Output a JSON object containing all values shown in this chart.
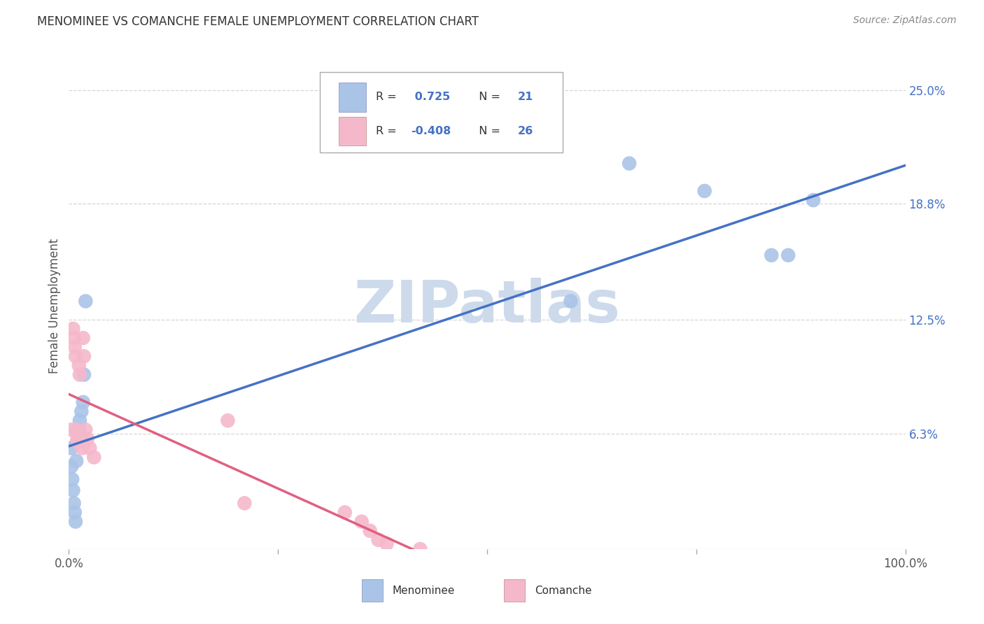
{
  "title": "MENOMINEE VS COMANCHE FEMALE UNEMPLOYMENT CORRELATION CHART",
  "source": "Source: ZipAtlas.com",
  "ylabel": "Female Unemployment",
  "menominee_R": 0.725,
  "menominee_N": 21,
  "comanche_R": -0.408,
  "comanche_N": 26,
  "menominee_color": "#aac4e8",
  "comanche_color": "#f5b8cb",
  "menominee_line_color": "#4472c4",
  "comanche_line_color": "#e06080",
  "background_color": "#ffffff",
  "grid_color": "#cccccc",
  "watermark_color": "#cddaeb",
  "legend_menominee": "Menominee",
  "legend_comanche": "Comanche",
  "xlim": [
    0.0,
    1.0
  ],
  "ylim": [
    0.0,
    0.265
  ],
  "y_tick_vals": [
    0.063,
    0.125,
    0.188,
    0.25
  ],
  "y_tick_labels": [
    "6.3%",
    "12.5%",
    "18.8%",
    "25.0%"
  ],
  "x_tick_vals": [
    0.0,
    0.25,
    0.5,
    0.75,
    1.0
  ],
  "menominee_x": [
    0.003,
    0.003,
    0.004,
    0.005,
    0.006,
    0.007,
    0.008,
    0.009,
    0.01,
    0.012,
    0.013,
    0.015,
    0.017,
    0.018,
    0.02,
    0.6,
    0.67,
    0.76,
    0.84,
    0.86,
    0.89
  ],
  "menominee_y": [
    0.055,
    0.045,
    0.038,
    0.032,
    0.025,
    0.02,
    0.015,
    0.048,
    0.058,
    0.065,
    0.07,
    0.075,
    0.08,
    0.095,
    0.135,
    0.135,
    0.21,
    0.195,
    0.16,
    0.16,
    0.19
  ],
  "comanche_x": [
    0.003,
    0.005,
    0.006,
    0.007,
    0.008,
    0.009,
    0.01,
    0.011,
    0.012,
    0.013,
    0.015,
    0.016,
    0.017,
    0.018,
    0.02,
    0.022,
    0.025,
    0.03,
    0.19,
    0.21,
    0.33,
    0.35,
    0.36,
    0.37,
    0.38,
    0.42
  ],
  "comanche_y": [
    0.065,
    0.12,
    0.115,
    0.11,
    0.105,
    0.065,
    0.06,
    0.058,
    0.1,
    0.095,
    0.06,
    0.055,
    0.115,
    0.105,
    0.065,
    0.06,
    0.055,
    0.05,
    0.07,
    0.025,
    0.02,
    0.015,
    0.01,
    0.005,
    0.003,
    0.0
  ]
}
